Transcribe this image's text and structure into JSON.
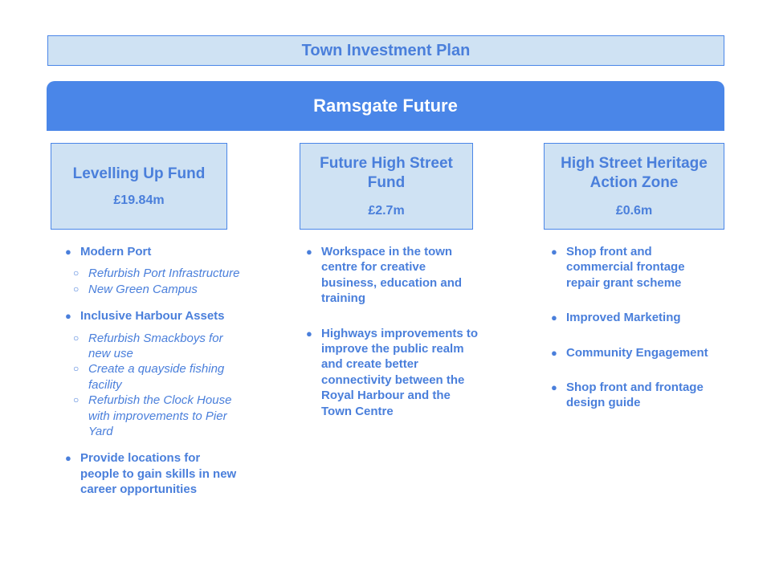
{
  "title": "Town Investment Plan",
  "banner": "Ramsgate Future",
  "funds": [
    {
      "name": "Levelling Up Fund",
      "amount": "£19.84m",
      "items": [
        {
          "text": "Modern Port",
          "subitems": [
            "Refurbish Port Infrastructure",
            "New Green Campus"
          ]
        },
        {
          "text": "Inclusive Harbour Assets",
          "subitems": [
            "Refurbish Smackboys for new use",
            "Create a quayside fishing facility",
            "Refurbish the Clock House with improvements to Pier Yard"
          ]
        },
        {
          "text": "Provide locations for people to gain skills in new career opportunities"
        }
      ]
    },
    {
      "name": "Future High Street Fund",
      "amount": "£2.7m",
      "items": [
        {
          "text": "Workspace in the town centre for creative business, education and training"
        },
        {
          "text": "Highways improvements to improve the public realm and create better connectivity between the Royal Harbour and the Town Centre"
        }
      ]
    },
    {
      "name": "High Street Heritage Action Zone",
      "amount": "£0.6m",
      "items": [
        {
          "text": "Shop front and commercial frontage repair grant scheme"
        },
        {
          "text": "Improved Marketing"
        },
        {
          "text": "Community Engagement"
        },
        {
          "text": "Shop front and frontage design guide"
        }
      ]
    }
  ],
  "colors": {
    "accent": "#4a86e8",
    "light": "#cfe2f3",
    "text": "#4a7fdb"
  }
}
